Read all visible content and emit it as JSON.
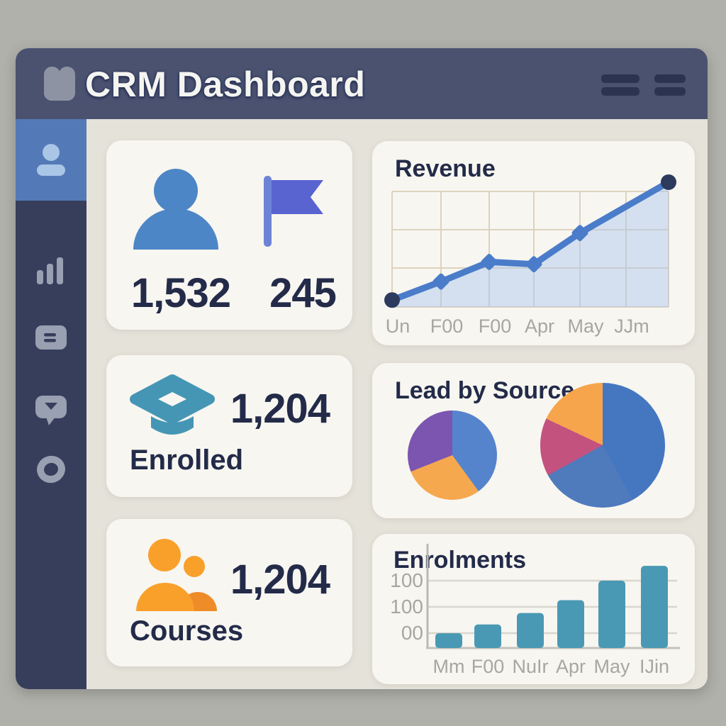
{
  "header": {
    "title": "CRM Dashboard",
    "logo_icon": "book-icon",
    "menu_buttons": [
      "menu-lines-button",
      "menu-lines-button"
    ]
  },
  "sidebar": {
    "items": [
      {
        "icon": "person-icon",
        "active": true
      },
      {
        "icon": "bar-chart-icon",
        "active": false
      },
      {
        "icon": "card-list-icon",
        "active": false
      },
      {
        "icon": "chat-bubble-icon",
        "active": false
      },
      {
        "icon": "ring-icon",
        "active": false
      }
    ]
  },
  "stats": {
    "contacts_value": "1,532",
    "flagged_value": "245",
    "enrolled_value": "1,204",
    "enrolled_label": "Enrolled",
    "courses_value": "1,204",
    "courses_label": "Courses"
  },
  "colors": {
    "header_bg": "#4a5270",
    "sidebar_bg": "#363e5c",
    "sidebar_active_bg": "#5479b7",
    "card_bg": "#f8f6f1",
    "main_bg": "#e5e2da",
    "dark_text": "#232b49",
    "axis_text": "#a7a7a1",
    "stat_blue": "#4d86c6",
    "flag_purple_blue": "#5a64d0",
    "teal": "#4596b5",
    "orange": "#f9a02b",
    "line_blue": "#4a7cc9",
    "line_dot_navy": "#2c3a5e",
    "bar_teal": "#4a99b4"
  },
  "chart_data": [
    {
      "type": "line",
      "title": "Revenue",
      "x": [
        "Un",
        "F00",
        "F00",
        "Apr",
        "May",
        "JJm"
      ],
      "series": [
        {
          "name": "Revenue",
          "values": [
            6,
            22,
            39,
            37,
            64,
            108
          ]
        }
      ],
      "xlabel": "",
      "ylabel": "",
      "ylim": [
        0,
        110
      ],
      "grid": true,
      "area": true,
      "legend": false
    },
    {
      "type": "pie",
      "title": "Lead by Source",
      "legend": false,
      "pies": [
        {
          "name": "left-pie",
          "slices": [
            {
              "color": "#5584cc",
              "value": 40
            },
            {
              "color": "#f6a84e",
              "value": 29
            },
            {
              "color": "#7c55b0",
              "value": 31
            }
          ]
        },
        {
          "name": "right-pie",
          "slices": [
            {
              "color": "#4577c0",
              "value": 42
            },
            {
              "color": "#4f7abc",
              "value": 25
            },
            {
              "color": "#c4527f",
              "value": 15
            },
            {
              "color": "#f6a54c",
              "value": 18
            }
          ]
        }
      ]
    },
    {
      "type": "bar",
      "title": "Enrolments",
      "categories": [
        "Mm",
        "F00",
        "NuIr",
        "Apr",
        "May",
        "IJin"
      ],
      "values": [
        22,
        35,
        52,
        71,
        100,
        122
      ],
      "yticks": [
        "100",
        "100",
        "00"
      ],
      "xlabel": "",
      "ylabel": "",
      "ylim": [
        0,
        130
      ],
      "grid": true,
      "legend": false
    }
  ]
}
